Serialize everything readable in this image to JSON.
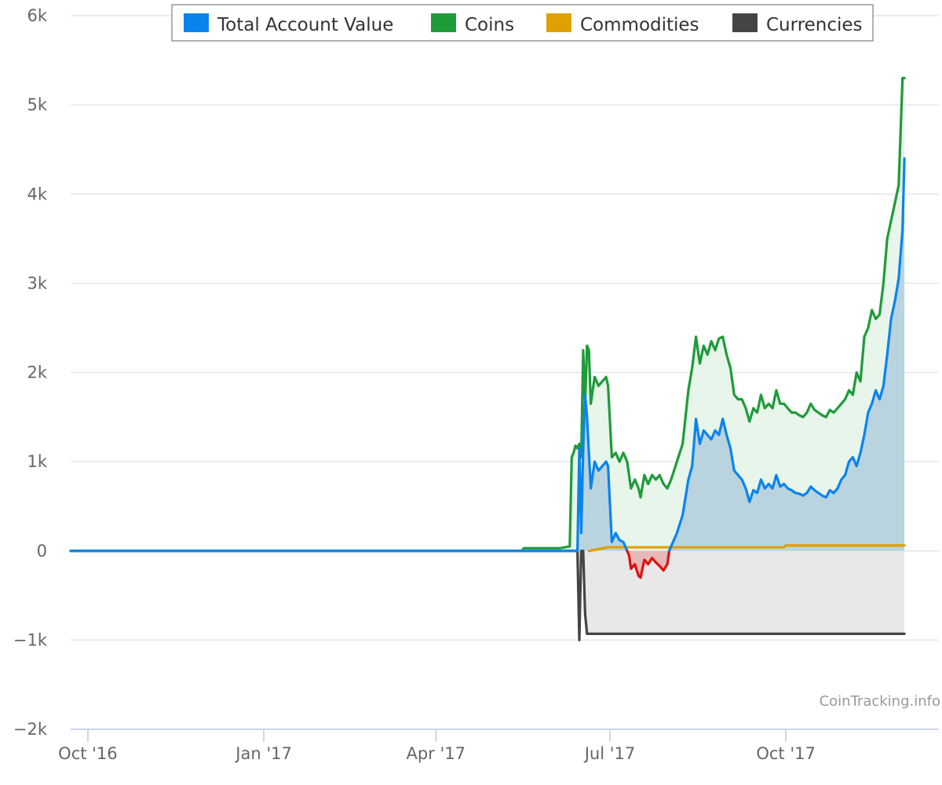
{
  "chart_data": {
    "type": "line",
    "title": "",
    "xlabel": "",
    "ylabel": "",
    "x_tick_labels": [
      "Oct '16",
      "Jan '17",
      "Apr '17",
      "Jul '17",
      "Oct '17"
    ],
    "x_tick_dates": [
      "2016-10-01",
      "2017-01-01",
      "2017-04-01",
      "2017-07-01",
      "2017-10-01"
    ],
    "xlim": [
      "2016-09-22",
      "2017-12-20"
    ],
    "y_tick_labels": [
      "6k",
      "5k",
      "4k",
      "3k",
      "2k",
      "1k",
      "0",
      "−1k",
      "−2k"
    ],
    "y_tick_values": [
      6000,
      5000,
      4000,
      3000,
      2000,
      1000,
      0,
      -1000,
      -2000
    ],
    "ylim": [
      -2000,
      6000
    ],
    "grid": "horizontal",
    "legend_position": "top-center",
    "credit": "CoinTracking.info",
    "colors": {
      "total": "#0a84ed",
      "coins": "#1f9b3a",
      "commodities": "#e0a000",
      "currencies": "#444444",
      "negative": "#e01010",
      "fill_total": "#b9d4df",
      "fill_coins": "#e8f5ea",
      "fill_negative": "#e8e8e8",
      "fill_total_negative": "#e7b8b8",
      "grid": "#e6e6e6",
      "axis": "#ccd6eb"
    },
    "legend": [
      {
        "key": "total",
        "label": "Total Account Value"
      },
      {
        "key": "coins",
        "label": "Coins"
      },
      {
        "key": "commodities",
        "label": "Commodities"
      },
      {
        "key": "currencies",
        "label": "Currencies"
      }
    ],
    "series": [
      {
        "key": "total",
        "name": "Total Account Value",
        "points": [
          [
            "2016-09-22",
            0
          ],
          [
            "2017-05-16",
            0
          ],
          [
            "2017-06-14",
            0
          ],
          [
            "2017-06-15",
            1150
          ],
          [
            "2017-06-16",
            200
          ],
          [
            "2017-06-17",
            1150
          ],
          [
            "2017-06-18",
            1750
          ],
          [
            "2017-06-19",
            1500
          ],
          [
            "2017-06-20",
            1100
          ],
          [
            "2017-06-21",
            700
          ],
          [
            "2017-06-23",
            1000
          ],
          [
            "2017-06-25",
            900
          ],
          [
            "2017-06-27",
            950
          ],
          [
            "2017-06-29",
            1000
          ],
          [
            "2017-06-30",
            950
          ],
          [
            "2017-07-02",
            100
          ],
          [
            "2017-07-04",
            200
          ],
          [
            "2017-07-06",
            120
          ],
          [
            "2017-07-08",
            100
          ],
          [
            "2017-07-10",
            0
          ],
          [
            "2017-07-11",
            -50
          ],
          [
            "2017-07-12",
            -200
          ],
          [
            "2017-07-14",
            -150
          ],
          [
            "2017-07-16",
            -280
          ],
          [
            "2017-07-17",
            -300
          ],
          [
            "2017-07-19",
            -100
          ],
          [
            "2017-07-21",
            -150
          ],
          [
            "2017-07-23",
            -80
          ],
          [
            "2017-07-25",
            -130
          ],
          [
            "2017-07-27",
            -170
          ],
          [
            "2017-07-29",
            -220
          ],
          [
            "2017-07-31",
            -150
          ],
          [
            "2017-08-02",
            50
          ],
          [
            "2017-08-05",
            200
          ],
          [
            "2017-08-08",
            400
          ],
          [
            "2017-08-11",
            800
          ],
          [
            "2017-08-13",
            950
          ],
          [
            "2017-08-15",
            1480
          ],
          [
            "2017-08-17",
            1200
          ],
          [
            "2017-08-19",
            1350
          ],
          [
            "2017-08-21",
            1300
          ],
          [
            "2017-08-23",
            1250
          ],
          [
            "2017-08-25",
            1350
          ],
          [
            "2017-08-27",
            1300
          ],
          [
            "2017-08-29",
            1480
          ],
          [
            "2017-08-31",
            1300
          ],
          [
            "2017-09-02",
            1150
          ],
          [
            "2017-09-04",
            900
          ],
          [
            "2017-09-06",
            850
          ],
          [
            "2017-09-08",
            800
          ],
          [
            "2017-09-10",
            700
          ],
          [
            "2017-09-12",
            550
          ],
          [
            "2017-09-14",
            680
          ],
          [
            "2017-09-16",
            650
          ],
          [
            "2017-09-18",
            800
          ],
          [
            "2017-09-20",
            700
          ],
          [
            "2017-09-22",
            750
          ],
          [
            "2017-09-24",
            700
          ],
          [
            "2017-09-26",
            850
          ],
          [
            "2017-09-28",
            720
          ],
          [
            "2017-09-30",
            750
          ],
          [
            "2017-10-02",
            700
          ],
          [
            "2017-10-04",
            680
          ],
          [
            "2017-10-06",
            650
          ],
          [
            "2017-10-08",
            640
          ],
          [
            "2017-10-10",
            620
          ],
          [
            "2017-10-12",
            650
          ],
          [
            "2017-10-14",
            720
          ],
          [
            "2017-10-16",
            680
          ],
          [
            "2017-10-18",
            650
          ],
          [
            "2017-10-20",
            620
          ],
          [
            "2017-10-22",
            600
          ],
          [
            "2017-10-24",
            680
          ],
          [
            "2017-10-26",
            650
          ],
          [
            "2017-10-28",
            700
          ],
          [
            "2017-10-30",
            800
          ],
          [
            "2017-11-01",
            850
          ],
          [
            "2017-11-03",
            1000
          ],
          [
            "2017-11-05",
            1050
          ],
          [
            "2017-11-07",
            950
          ],
          [
            "2017-11-09",
            1100
          ],
          [
            "2017-11-11",
            1300
          ],
          [
            "2017-11-13",
            1550
          ],
          [
            "2017-11-15",
            1650
          ],
          [
            "2017-11-17",
            1800
          ],
          [
            "2017-11-19",
            1700
          ],
          [
            "2017-11-21",
            1850
          ],
          [
            "2017-11-23",
            2200
          ],
          [
            "2017-11-25",
            2600
          ],
          [
            "2017-11-27",
            2800
          ],
          [
            "2017-11-29",
            3050
          ],
          [
            "2017-12-01",
            3600
          ],
          [
            "2017-12-02",
            4400
          ]
        ]
      },
      {
        "key": "coins",
        "name": "Coins",
        "points": [
          [
            "2016-09-22",
            0
          ],
          [
            "2017-05-16",
            0
          ],
          [
            "2017-05-17",
            30
          ],
          [
            "2017-06-05",
            30
          ],
          [
            "2017-06-10",
            50
          ],
          [
            "2017-06-11",
            1050
          ],
          [
            "2017-06-12",
            1100
          ],
          [
            "2017-06-13",
            1180
          ],
          [
            "2017-06-14",
            1150
          ],
          [
            "2017-06-15",
            1200
          ],
          [
            "2017-06-16",
            1050
          ],
          [
            "2017-06-17",
            2250
          ],
          [
            "2017-06-18",
            1650
          ],
          [
            "2017-06-19",
            2300
          ],
          [
            "2017-06-20",
            2250
          ],
          [
            "2017-06-21",
            1650
          ],
          [
            "2017-06-23",
            1950
          ],
          [
            "2017-06-25",
            1850
          ],
          [
            "2017-06-27",
            1900
          ],
          [
            "2017-06-29",
            1950
          ],
          [
            "2017-06-30",
            1850
          ],
          [
            "2017-07-02",
            1050
          ],
          [
            "2017-07-04",
            1100
          ],
          [
            "2017-07-06",
            1000
          ],
          [
            "2017-07-08",
            1100
          ],
          [
            "2017-07-10",
            1000
          ],
          [
            "2017-07-12",
            700
          ],
          [
            "2017-07-14",
            800
          ],
          [
            "2017-07-16",
            700
          ],
          [
            "2017-07-17",
            600
          ],
          [
            "2017-07-19",
            850
          ],
          [
            "2017-07-21",
            750
          ],
          [
            "2017-07-23",
            850
          ],
          [
            "2017-07-25",
            800
          ],
          [
            "2017-07-27",
            850
          ],
          [
            "2017-07-29",
            750
          ],
          [
            "2017-07-31",
            700
          ],
          [
            "2017-08-02",
            800
          ],
          [
            "2017-08-05",
            1000
          ],
          [
            "2017-08-08",
            1200
          ],
          [
            "2017-08-11",
            1800
          ],
          [
            "2017-08-13",
            2050
          ],
          [
            "2017-08-15",
            2400
          ],
          [
            "2017-08-17",
            2100
          ],
          [
            "2017-08-19",
            2300
          ],
          [
            "2017-08-21",
            2200
          ],
          [
            "2017-08-23",
            2350
          ],
          [
            "2017-08-25",
            2250
          ],
          [
            "2017-08-27",
            2380
          ],
          [
            "2017-08-29",
            2400
          ],
          [
            "2017-08-31",
            2200
          ],
          [
            "2017-09-02",
            2050
          ],
          [
            "2017-09-04",
            1750
          ],
          [
            "2017-09-06",
            1700
          ],
          [
            "2017-09-08",
            1700
          ],
          [
            "2017-09-10",
            1600
          ],
          [
            "2017-09-12",
            1450
          ],
          [
            "2017-09-14",
            1600
          ],
          [
            "2017-09-16",
            1550
          ],
          [
            "2017-09-18",
            1750
          ],
          [
            "2017-09-20",
            1600
          ],
          [
            "2017-09-22",
            1650
          ],
          [
            "2017-09-24",
            1600
          ],
          [
            "2017-09-26",
            1800
          ],
          [
            "2017-09-28",
            1650
          ],
          [
            "2017-09-30",
            1650
          ],
          [
            "2017-10-02",
            1600
          ],
          [
            "2017-10-04",
            1550
          ],
          [
            "2017-10-06",
            1550
          ],
          [
            "2017-10-08",
            1520
          ],
          [
            "2017-10-10",
            1500
          ],
          [
            "2017-10-12",
            1550
          ],
          [
            "2017-10-14",
            1650
          ],
          [
            "2017-10-16",
            1580
          ],
          [
            "2017-10-18",
            1550
          ],
          [
            "2017-10-20",
            1520
          ],
          [
            "2017-10-22",
            1500
          ],
          [
            "2017-10-24",
            1580
          ],
          [
            "2017-10-26",
            1550
          ],
          [
            "2017-10-28",
            1600
          ],
          [
            "2017-10-30",
            1650
          ],
          [
            "2017-11-01",
            1700
          ],
          [
            "2017-11-03",
            1800
          ],
          [
            "2017-11-05",
            1750
          ],
          [
            "2017-11-07",
            2000
          ],
          [
            "2017-11-09",
            1900
          ],
          [
            "2017-11-11",
            2400
          ],
          [
            "2017-11-13",
            2500
          ],
          [
            "2017-11-15",
            2700
          ],
          [
            "2017-11-17",
            2600
          ],
          [
            "2017-11-19",
            2650
          ],
          [
            "2017-11-21",
            3000
          ],
          [
            "2017-11-23",
            3500
          ],
          [
            "2017-11-25",
            3700
          ],
          [
            "2017-11-27",
            3900
          ],
          [
            "2017-11-29",
            4100
          ],
          [
            "2017-12-01",
            5300
          ],
          [
            "2017-12-02",
            5300
          ]
        ]
      },
      {
        "key": "commodities",
        "name": "Commodities",
        "points": [
          [
            "2017-06-20",
            0
          ],
          [
            "2017-06-25",
            20
          ],
          [
            "2017-06-30",
            40
          ],
          [
            "2017-09-30",
            40
          ],
          [
            "2017-10-01",
            60
          ],
          [
            "2017-12-02",
            60
          ]
        ]
      },
      {
        "key": "currencies",
        "name": "Currencies",
        "points": [
          [
            "2016-09-22",
            0
          ],
          [
            "2017-06-14",
            0
          ],
          [
            "2017-06-15",
            -1000
          ],
          [
            "2017-06-16",
            0
          ],
          [
            "2017-06-17",
            0
          ],
          [
            "2017-06-18",
            -700
          ],
          [
            "2017-06-19",
            -930
          ],
          [
            "2017-12-02",
            -930
          ]
        ]
      }
    ]
  }
}
